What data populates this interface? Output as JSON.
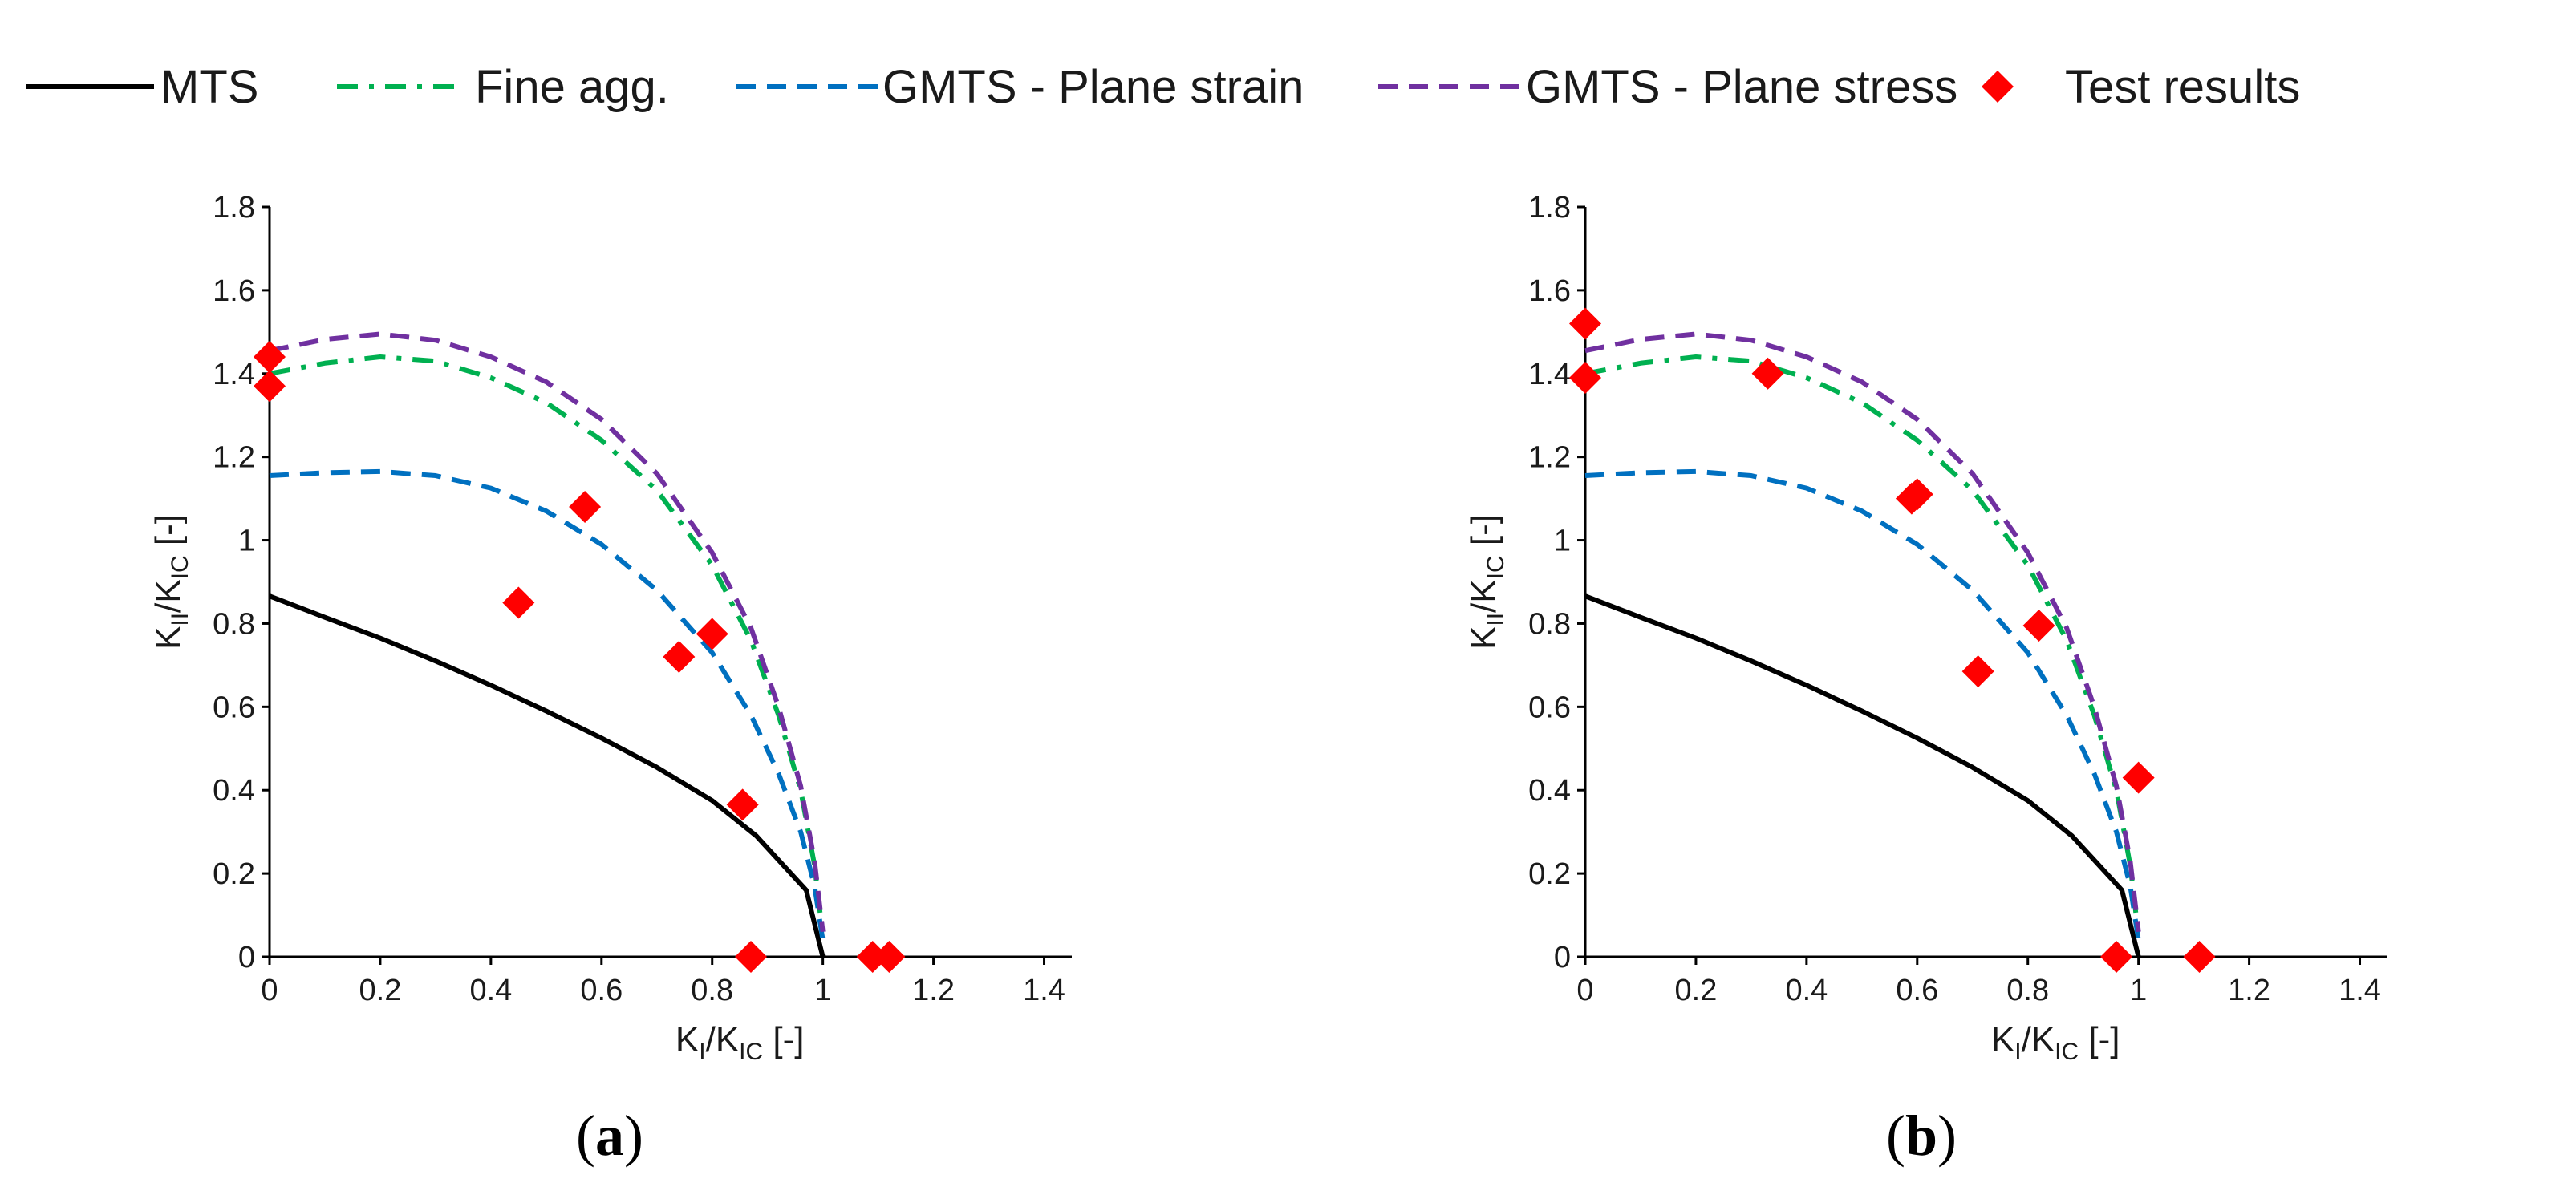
{
  "legend": {
    "items": [
      {
        "key": "mts",
        "label": "MTS",
        "color": "#000000",
        "style": "solid"
      },
      {
        "key": "fine",
        "label": "Fine agg.",
        "color": "#00b050",
        "style": "dashdot"
      },
      {
        "key": "gmts_strain",
        "label": "GMTS - Plane strain",
        "color": "#0070c0",
        "style": "dashed"
      },
      {
        "key": "gmts_stress",
        "label": "GMTS - Plane stress",
        "color": "#7030a0",
        "style": "dashed"
      },
      {
        "key": "test",
        "label": "Test results",
        "color": "#ff0000",
        "style": "marker"
      }
    ]
  },
  "chart_data": [
    {
      "type": "line",
      "panel_label": "(a)",
      "panel_letter": "a",
      "xlabel": {
        "main": "K",
        "sub1": "I",
        "mid": "/K",
        "sub2": "IC",
        "tail": " [-]"
      },
      "ylabel": {
        "main": "K",
        "sub1": "II",
        "mid": "/K",
        "sub2": "IC",
        "tail": "  [-]"
      },
      "xlim": [
        0,
        1.45
      ],
      "ylim": [
        0,
        1.8
      ],
      "xticks": [
        0,
        0.2,
        0.4,
        0.6,
        0.8,
        1,
        1.2,
        1.4
      ],
      "xtick_labels": [
        "0",
        "0.2",
        "0.4",
        "0.6",
        "0.8",
        "1",
        "1.2",
        "1.4"
      ],
      "yticks": [
        0,
        0.2,
        0.4,
        0.6,
        0.8,
        1,
        1.2,
        1.4,
        1.6,
        1.8
      ],
      "ytick_labels": [
        "0",
        "0.2",
        "0.4",
        "0.6",
        "0.8",
        "1",
        "1.2",
        "1.4",
        "1.6",
        "1.8"
      ],
      "series": [
        {
          "key": "mts",
          "name": "MTS",
          "x": [
            0,
            0.1,
            0.2,
            0.3,
            0.4,
            0.5,
            0.6,
            0.7,
            0.8,
            0.88,
            0.97,
            1.0
          ],
          "y": [
            0.866,
            0.815,
            0.765,
            0.71,
            0.652,
            0.59,
            0.525,
            0.455,
            0.375,
            0.29,
            0.16,
            0
          ]
        },
        {
          "key": "fine",
          "name": "Fine agg.",
          "x": [
            0,
            0.1,
            0.2,
            0.3,
            0.4,
            0.5,
            0.6,
            0.7,
            0.8,
            0.87,
            0.92,
            0.96,
            0.985,
            1.0
          ],
          "y": [
            1.4,
            1.425,
            1.44,
            1.43,
            1.39,
            1.33,
            1.24,
            1.12,
            0.94,
            0.76,
            0.58,
            0.4,
            0.22,
            0.05
          ]
        },
        {
          "key": "gmts_strain",
          "name": "GMTS - Plane strain",
          "x": [
            0,
            0.1,
            0.2,
            0.3,
            0.4,
            0.5,
            0.6,
            0.7,
            0.8,
            0.87,
            0.92,
            0.96,
            0.985,
            1.0
          ],
          "y": [
            1.155,
            1.162,
            1.165,
            1.155,
            1.125,
            1.07,
            0.99,
            0.88,
            0.73,
            0.58,
            0.44,
            0.3,
            0.17,
            0.04
          ]
        },
        {
          "key": "gmts_stress",
          "name": "GMTS - Plane stress",
          "x": [
            0,
            0.1,
            0.2,
            0.3,
            0.4,
            0.5,
            0.6,
            0.7,
            0.8,
            0.87,
            0.92,
            0.96,
            0.985,
            1.0
          ],
          "y": [
            1.455,
            1.482,
            1.495,
            1.48,
            1.44,
            1.38,
            1.29,
            1.16,
            0.97,
            0.79,
            0.6,
            0.41,
            0.23,
            0.06
          ]
        }
      ],
      "points": {
        "name": "Test results",
        "x": [
          0,
          0,
          0.45,
          0.57,
          0.74,
          0.8,
          0.855,
          0.87,
          1.09,
          1.12
        ],
        "y": [
          1.44,
          1.37,
          0.85,
          1.08,
          0.72,
          0.775,
          0.365,
          0,
          0,
          0
        ]
      }
    },
    {
      "type": "line",
      "panel_label": "(b)",
      "panel_letter": "b",
      "xlabel": {
        "main": "K",
        "sub1": "I",
        "mid": "/K",
        "sub2": "IC",
        "tail": " [-]"
      },
      "ylabel": {
        "main": "K",
        "sub1": "II",
        "mid": "/K",
        "sub2": "IC",
        "tail": "  [-]"
      },
      "xlim": [
        0,
        1.45
      ],
      "ylim": [
        0,
        1.8
      ],
      "xticks": [
        0,
        0.2,
        0.4,
        0.6,
        0.8,
        1,
        1.2,
        1.4
      ],
      "xtick_labels": [
        "0",
        "0.2",
        "0.4",
        "0.6",
        "0.8",
        "1",
        "1.2",
        "1.4"
      ],
      "yticks": [
        0,
        0.2,
        0.4,
        0.6,
        0.8,
        1,
        1.2,
        1.4,
        1.6,
        1.8
      ],
      "ytick_labels": [
        "0",
        "0.2",
        "0.4",
        "0.6",
        "0.8",
        "1",
        "1.2",
        "1.4",
        "1.6",
        "1.8"
      ],
      "series": [
        {
          "key": "mts",
          "name": "MTS",
          "x": [
            0,
            0.1,
            0.2,
            0.3,
            0.4,
            0.5,
            0.6,
            0.7,
            0.8,
            0.88,
            0.97,
            1.0
          ],
          "y": [
            0.866,
            0.815,
            0.765,
            0.71,
            0.652,
            0.59,
            0.525,
            0.455,
            0.375,
            0.29,
            0.16,
            0
          ]
        },
        {
          "key": "fine",
          "name": "Fine agg.",
          "x": [
            0,
            0.1,
            0.2,
            0.3,
            0.4,
            0.5,
            0.6,
            0.7,
            0.8,
            0.87,
            0.92,
            0.96,
            0.985,
            1.0
          ],
          "y": [
            1.4,
            1.425,
            1.44,
            1.43,
            1.39,
            1.33,
            1.24,
            1.12,
            0.94,
            0.76,
            0.58,
            0.4,
            0.22,
            0.05
          ]
        },
        {
          "key": "gmts_strain",
          "name": "GMTS - Plane strain",
          "x": [
            0,
            0.1,
            0.2,
            0.3,
            0.4,
            0.5,
            0.6,
            0.7,
            0.8,
            0.87,
            0.92,
            0.96,
            0.985,
            1.0
          ],
          "y": [
            1.155,
            1.162,
            1.165,
            1.155,
            1.125,
            1.07,
            0.99,
            0.88,
            0.73,
            0.58,
            0.44,
            0.3,
            0.17,
            0.04
          ]
        },
        {
          "key": "gmts_stress",
          "name": "GMTS - Plane stress",
          "x": [
            0,
            0.1,
            0.2,
            0.3,
            0.4,
            0.5,
            0.6,
            0.7,
            0.8,
            0.87,
            0.92,
            0.96,
            0.985,
            1.0
          ],
          "y": [
            1.455,
            1.482,
            1.495,
            1.48,
            1.44,
            1.38,
            1.29,
            1.16,
            0.97,
            0.79,
            0.6,
            0.41,
            0.23,
            0.06
          ]
        }
      ],
      "points": {
        "name": "Test results",
        "x": [
          0,
          0,
          0.33,
          0.59,
          0.6,
          0.71,
          0.82,
          0.96,
          1.0,
          1.11
        ],
        "y": [
          1.52,
          1.39,
          1.4,
          1.1,
          1.11,
          0.685,
          0.795,
          0,
          0.43,
          0
        ]
      }
    }
  ]
}
